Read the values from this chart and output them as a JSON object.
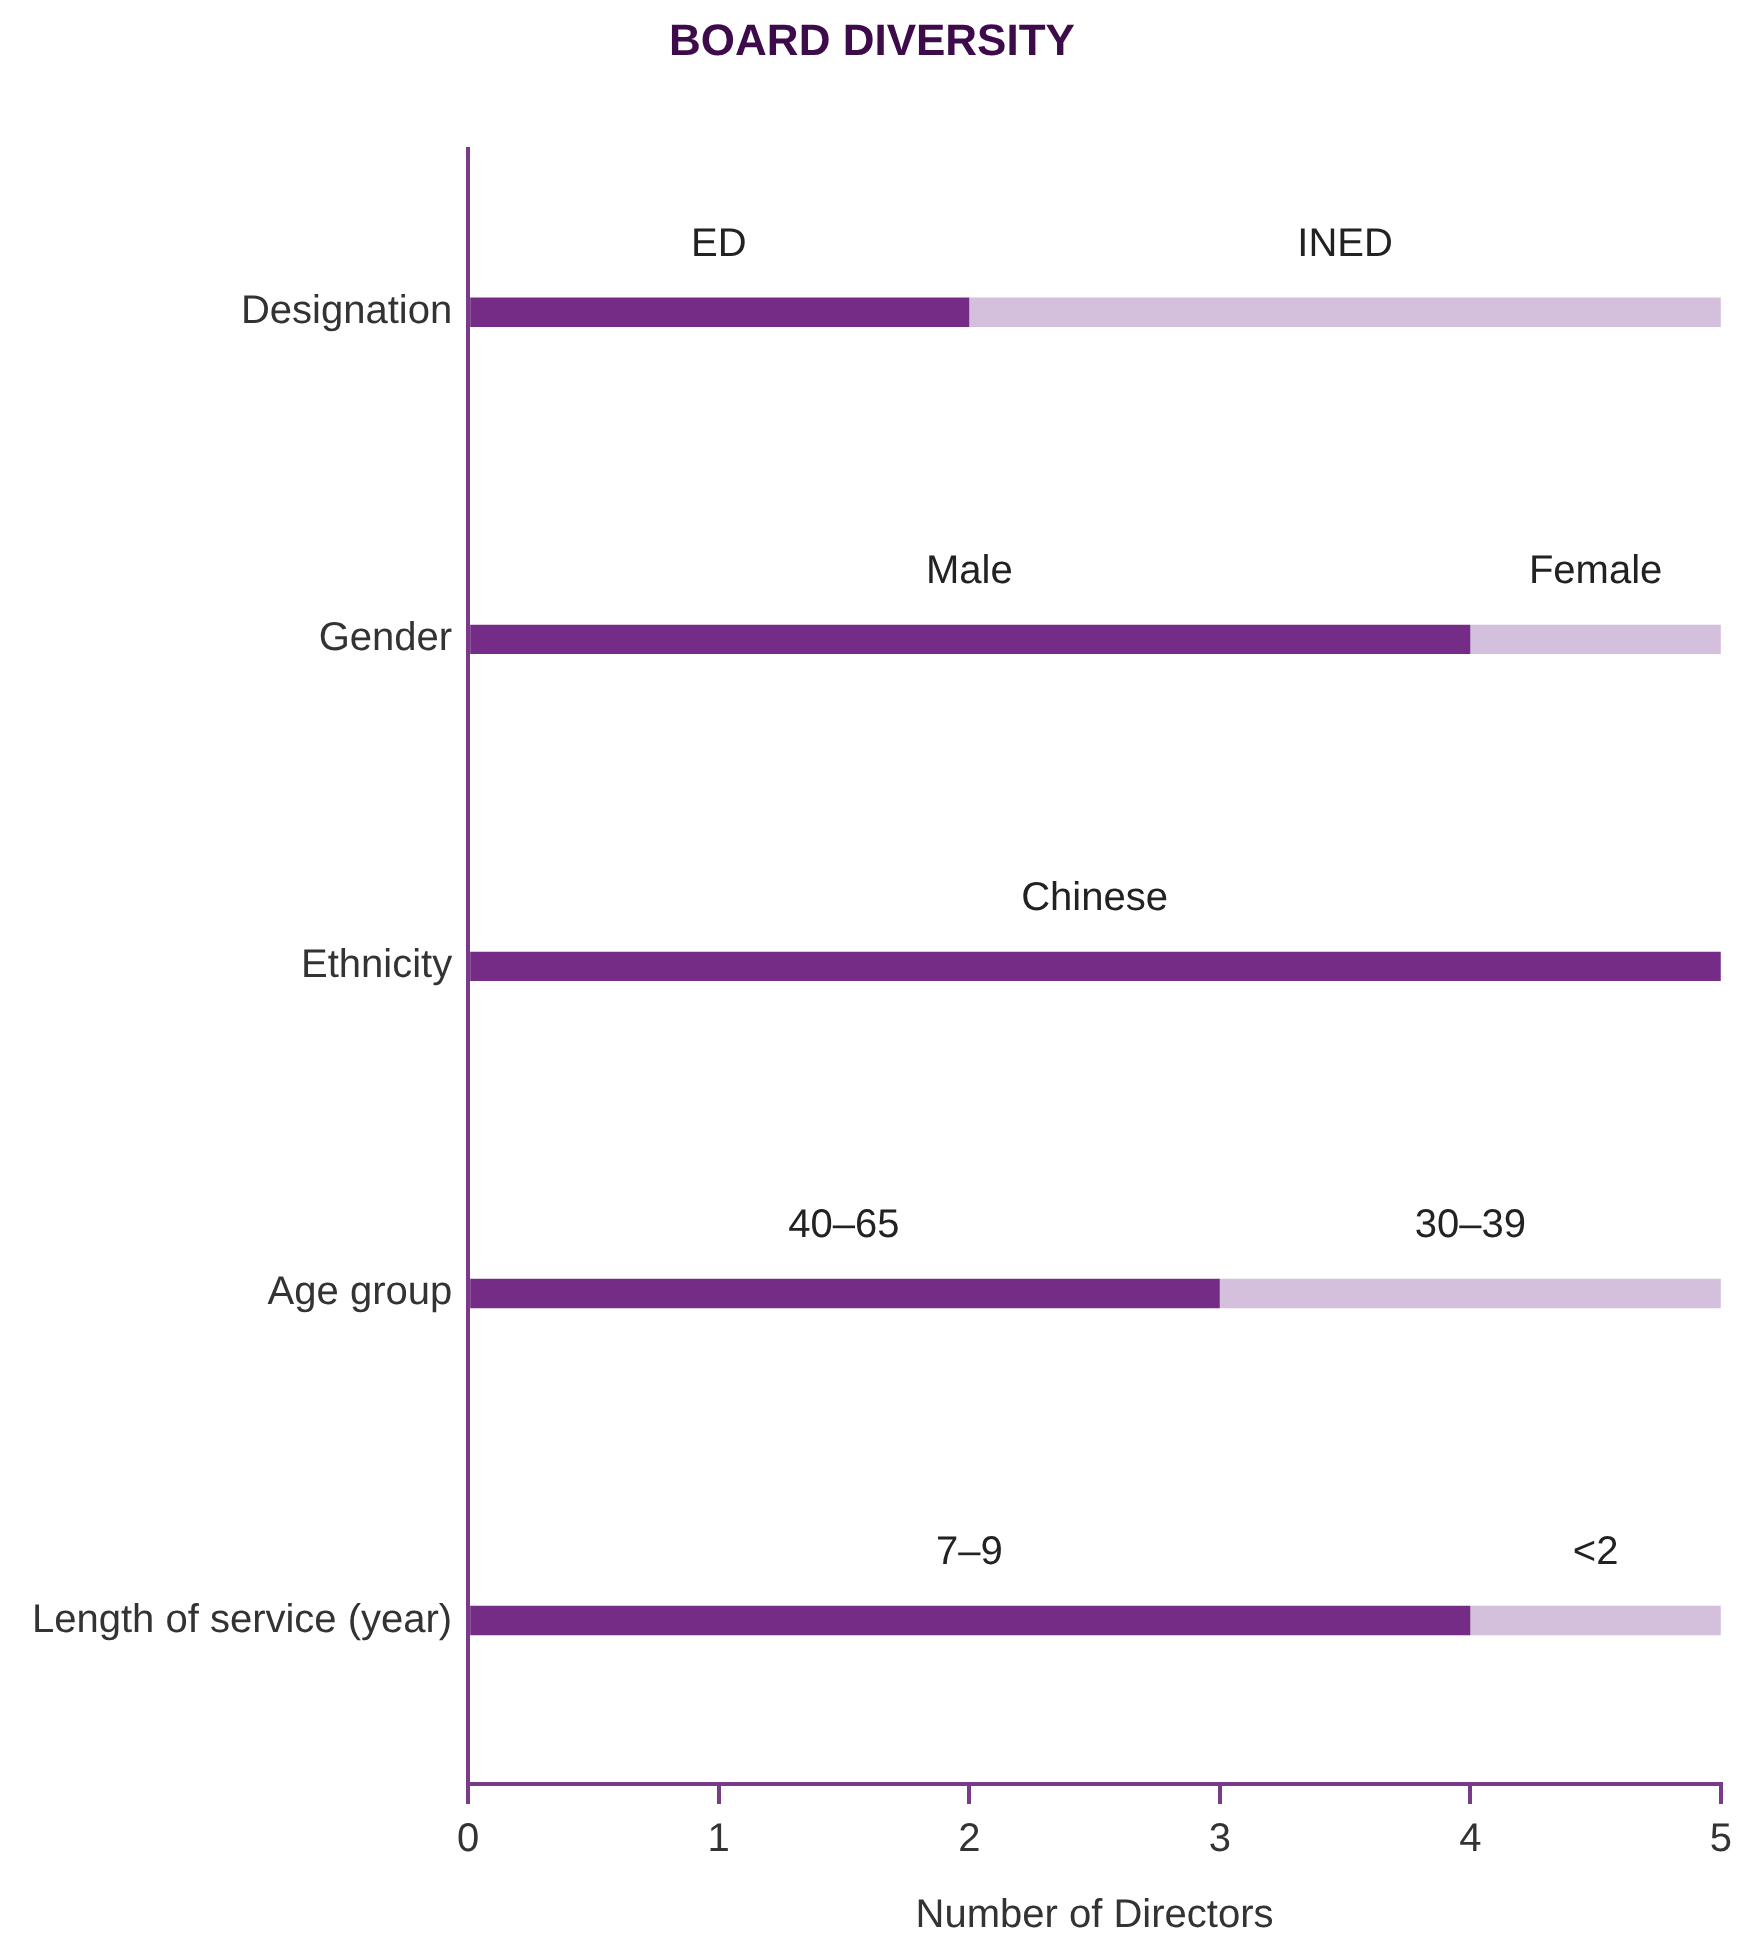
{
  "chart_data": {
    "type": "bar",
    "orientation": "horizontal",
    "stacked": true,
    "title": "BOARD DIVERSITY",
    "xlabel": "Number of Directors",
    "categories": [
      "Designation",
      "Gender",
      "Ethnicity",
      "Age group",
      "Length of service (year)"
    ],
    "series": [
      {
        "color": "#752c87",
        "values": [
          2,
          4,
          5,
          3,
          4
        ]
      },
      {
        "color": "#d4bfdd",
        "values": [
          3,
          1,
          0,
          2,
          1
        ]
      }
    ],
    "xlim": [
      0,
      5
    ],
    "xticks": [
      0,
      1,
      2,
      3,
      4,
      5
    ],
    "grid": false,
    "legend": false,
    "annotations": [
      "ED",
      "INED",
      "Male",
      "Female",
      "Chinese",
      "40–65",
      "30–39",
      "7–9",
      "<2"
    ]
  }
}
